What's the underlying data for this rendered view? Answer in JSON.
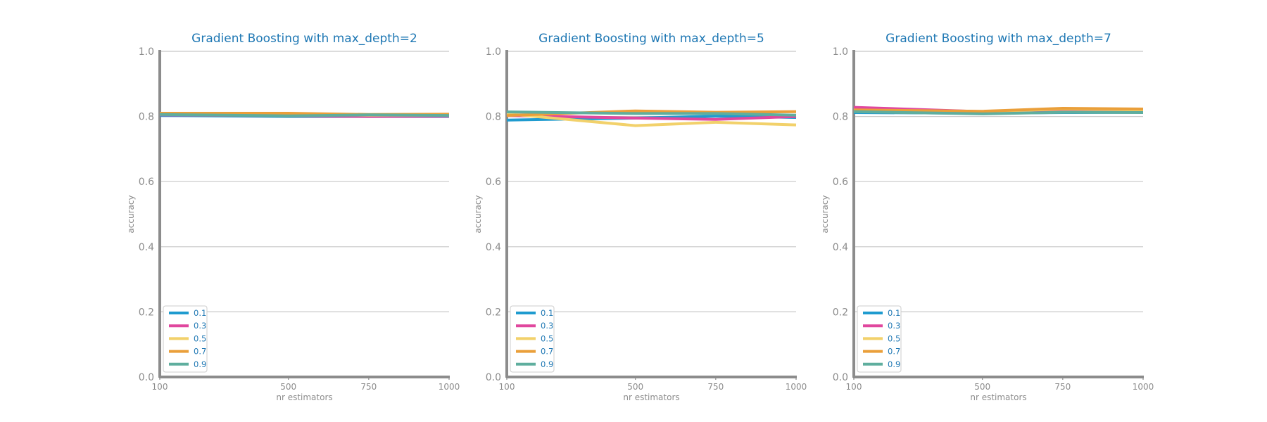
{
  "chart_data": [
    {
      "type": "line",
      "title": "Gradient Boosting with max_depth=2",
      "xlabel": "nr estimators",
      "ylabel": "accuracy",
      "x": [
        100,
        500,
        750,
        1000
      ],
      "x_ticks": [
        "100",
        "500",
        "750",
        "1000"
      ],
      "y_ticks": [
        "0.0",
        "0.2",
        "0.4",
        "0.6",
        "0.8",
        "1.0"
      ],
      "ylim": [
        0,
        1
      ],
      "xlim": [
        100,
        1000
      ],
      "grid": "horizontal",
      "legend_position": "lower-left",
      "series": [
        {
          "name": "0.1",
          "color": "#1f9bcf",
          "values": [
            0.803,
            0.8,
            0.8,
            0.8
          ]
        },
        {
          "name": "0.3",
          "color": "#e0479e",
          "values": [
            0.805,
            0.802,
            0.8,
            0.801
          ]
        },
        {
          "name": "0.5",
          "color": "#f2d16b",
          "values": [
            0.808,
            0.805,
            0.804,
            0.804
          ]
        },
        {
          "name": "0.7",
          "color": "#ea9f3a",
          "values": [
            0.81,
            0.81,
            0.806,
            0.807
          ]
        },
        {
          "name": "0.9",
          "color": "#5fae9e",
          "values": [
            0.806,
            0.802,
            0.805,
            0.803
          ]
        }
      ]
    },
    {
      "type": "line",
      "title": "Gradient Boosting with max_depth=5",
      "xlabel": "nr estimators",
      "ylabel": "accuracy",
      "x": [
        100,
        500,
        750,
        1000
      ],
      "x_ticks": [
        "100",
        "500",
        "750",
        "1000"
      ],
      "y_ticks": [
        "0.0",
        "0.2",
        "0.4",
        "0.6",
        "0.8",
        "1.0"
      ],
      "ylim": [
        0,
        1
      ],
      "xlim": [
        100,
        1000
      ],
      "grid": "horizontal",
      "legend_position": "lower-left",
      "series": [
        {
          "name": "0.1",
          "color": "#1f9bcf",
          "values": [
            0.789,
            0.795,
            0.801,
            0.797
          ]
        },
        {
          "name": "0.3",
          "color": "#e0479e",
          "values": [
            0.803,
            0.795,
            0.791,
            0.8
          ]
        },
        {
          "name": "0.5",
          "color": "#f2d16b",
          "values": [
            0.808,
            0.772,
            0.782,
            0.774
          ]
        },
        {
          "name": "0.7",
          "color": "#ea9f3a",
          "values": [
            0.803,
            0.817,
            0.813,
            0.815
          ]
        },
        {
          "name": "0.9",
          "color": "#5fae9e",
          "values": [
            0.814,
            0.809,
            0.809,
            0.804
          ]
        }
      ]
    },
    {
      "type": "line",
      "title": "Gradient Boosting with max_depth=7",
      "xlabel": "nr estimators",
      "ylabel": "accuracy",
      "x": [
        100,
        500,
        750,
        1000
      ],
      "x_ticks": [
        "100",
        "500",
        "750",
        "1000"
      ],
      "y_ticks": [
        "0.0",
        "0.2",
        "0.4",
        "0.6",
        "0.8",
        "1.0"
      ],
      "ylim": [
        0,
        1
      ],
      "xlim": [
        100,
        1000
      ],
      "grid": "horizontal",
      "legend_position": "lower-left",
      "series": [
        {
          "name": "0.1",
          "color": "#1f9bcf",
          "values": [
            0.812,
            0.81,
            0.812,
            0.813
          ]
        },
        {
          "name": "0.3",
          "color": "#e0479e",
          "values": [
            0.828,
            0.815,
            0.818,
            0.818
          ]
        },
        {
          "name": "0.5",
          "color": "#f2d16b",
          "values": [
            0.818,
            0.815,
            0.823,
            0.82
          ]
        },
        {
          "name": "0.7",
          "color": "#ea9f3a",
          "values": [
            0.82,
            0.816,
            0.825,
            0.823
          ]
        },
        {
          "name": "0.9",
          "color": "#5fae9e",
          "values": [
            0.815,
            0.808,
            0.813,
            0.812
          ]
        }
      ]
    }
  ]
}
